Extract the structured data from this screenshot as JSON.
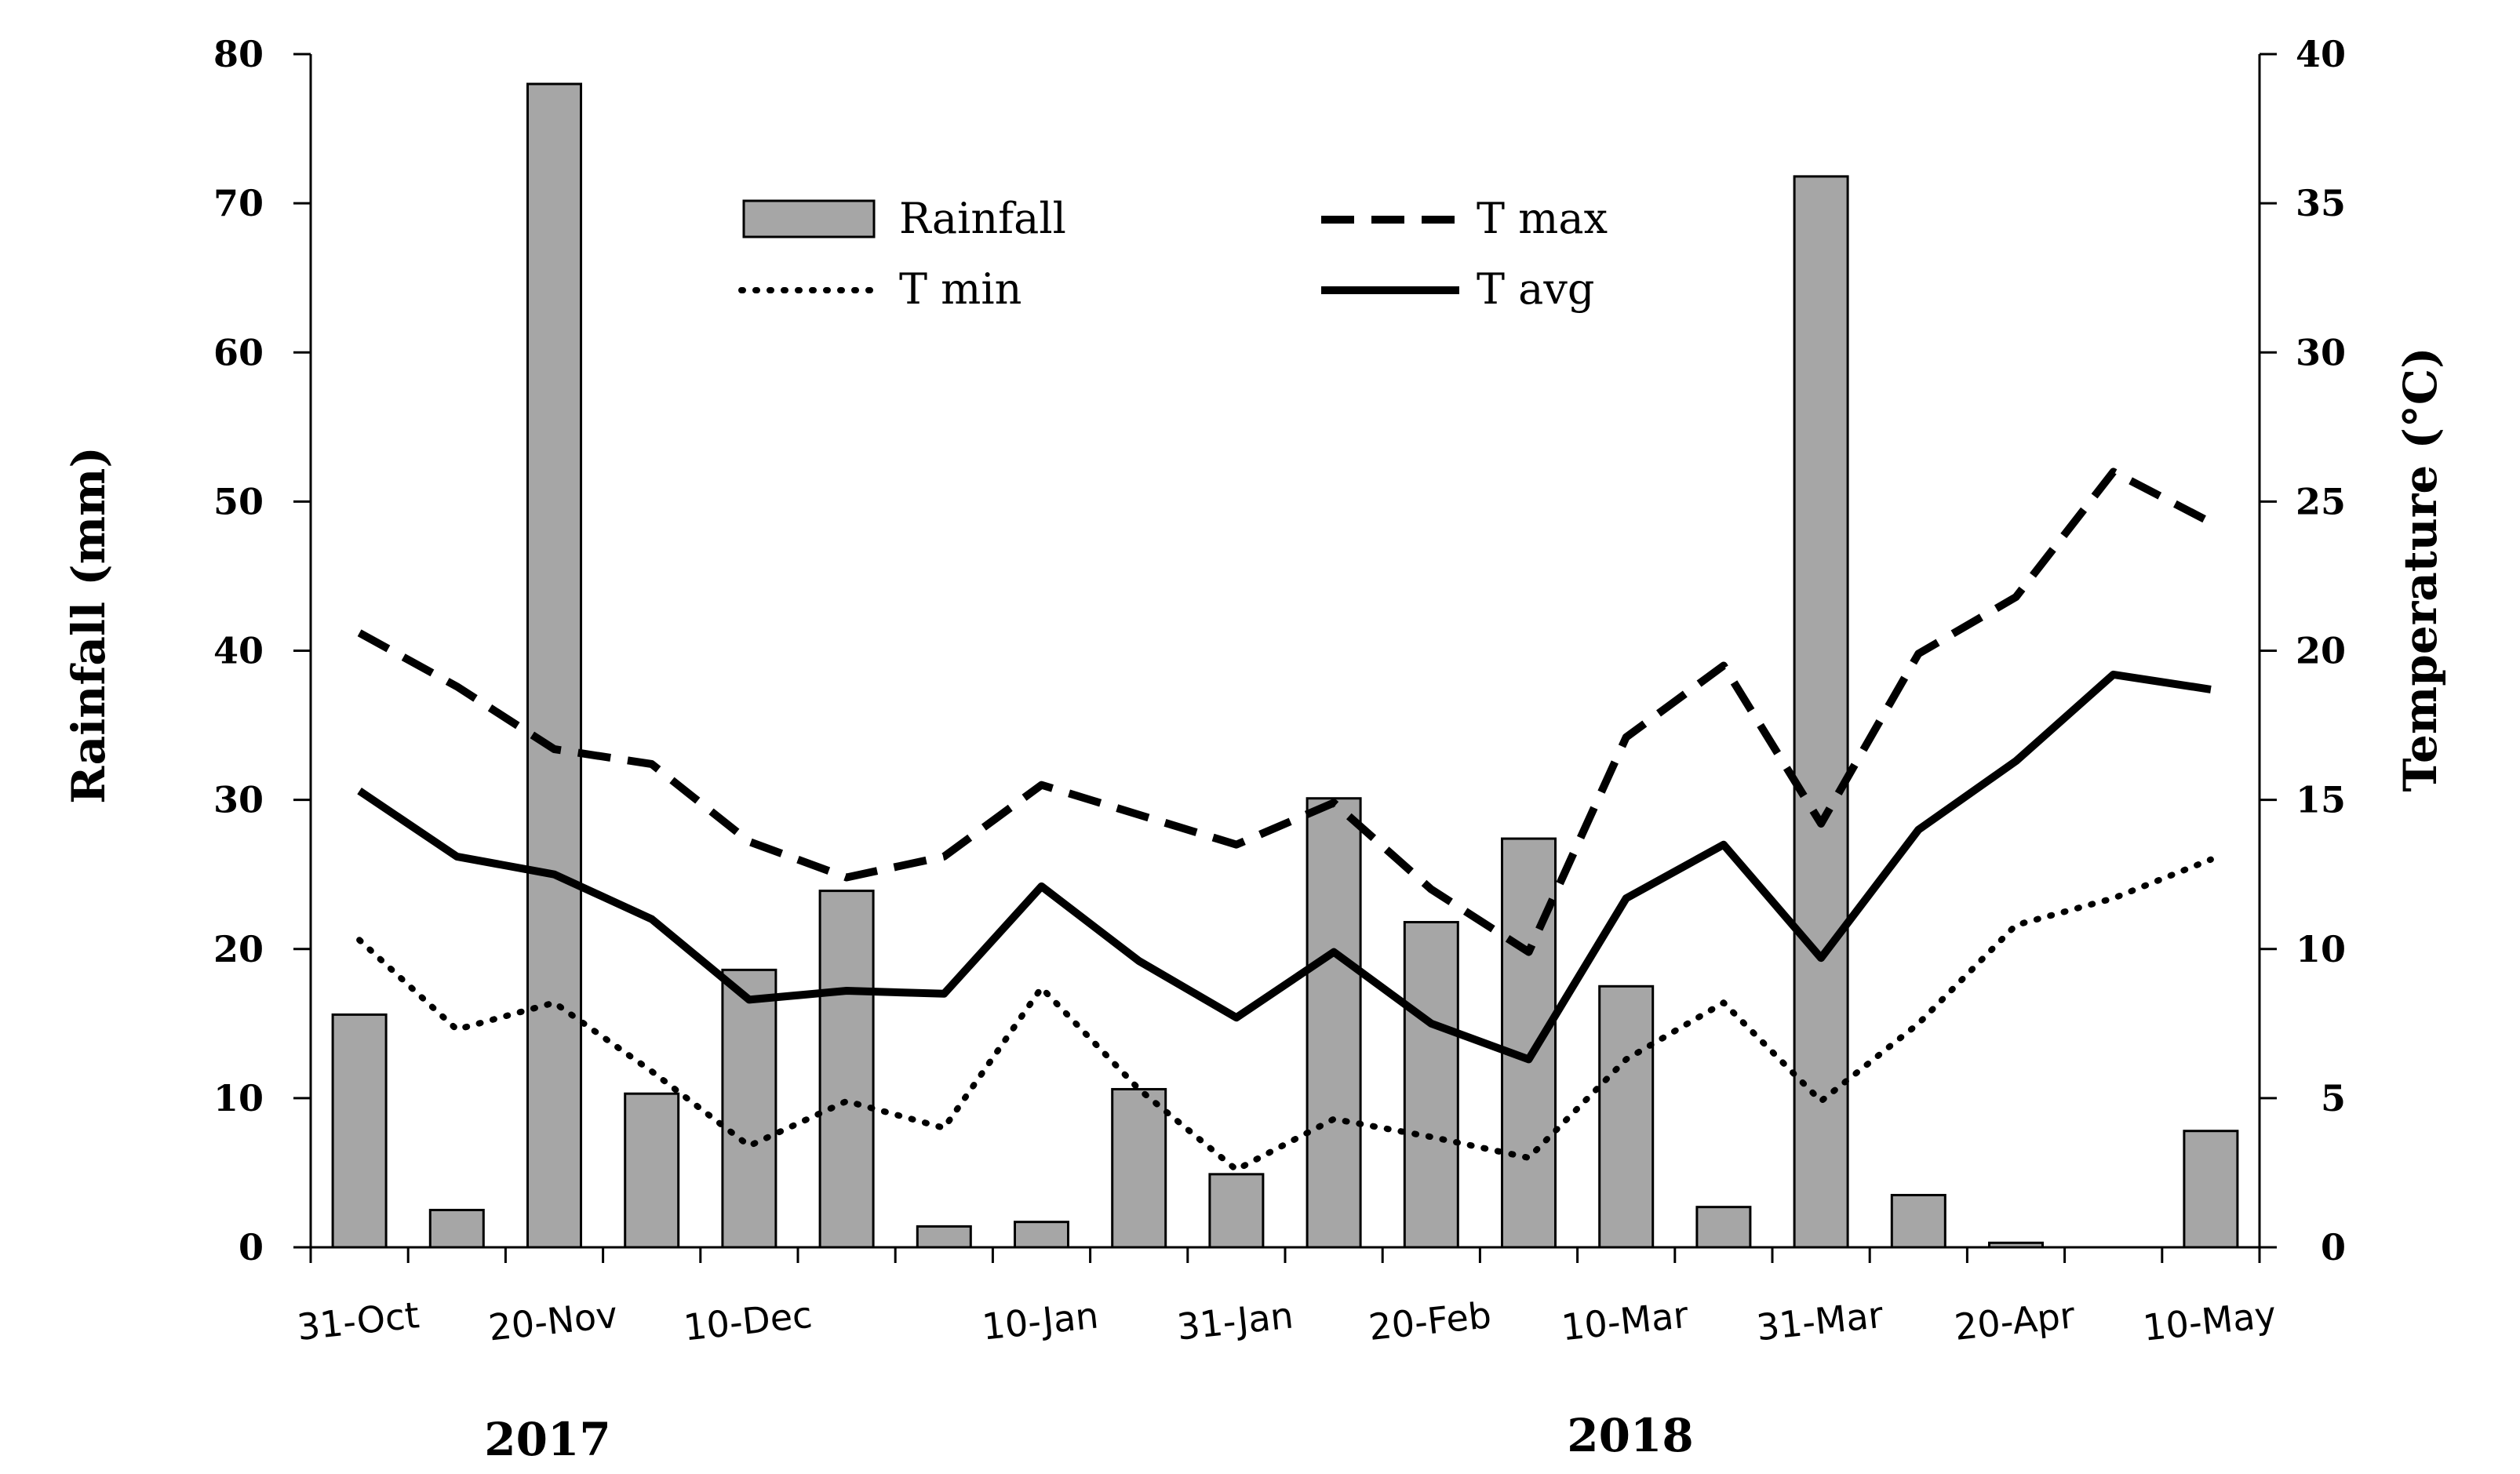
{
  "chart_data": {
    "type": "bar+line",
    "x_categories": [
      "31-Oct",
      "",
      "20-Nov",
      "",
      "10-Dec",
      "",
      "",
      "10-Jan",
      "",
      "31-Jan",
      "",
      "20-Feb",
      "",
      "10-Mar",
      "",
      "31-Mar",
      "",
      "20-Apr",
      "",
      "10-May"
    ],
    "x_tick_labels": [
      "31-Oct",
      "20-Nov",
      "10-Dec",
      "10-Jan",
      "31-Jan",
      "20-Feb",
      "10-Mar",
      "31-Mar",
      "20-Apr",
      "10-May"
    ],
    "year_labels": [
      "2017",
      "2018"
    ],
    "left_axis": {
      "label": "Rainfall  (mm)",
      "min": 0,
      "max": 80,
      "ticks": [
        0,
        10,
        20,
        30,
        40,
        50,
        60,
        70,
        80
      ]
    },
    "right_axis": {
      "label": "Temperature  (°C)",
      "min": 0,
      "max": 40,
      "ticks": [
        0,
        5,
        10,
        15,
        20,
        25,
        30,
        35,
        40
      ]
    },
    "rainfall": {
      "name": "Rainfall",
      "color": "#a6a6a6",
      "values": [
        15.6,
        2.5,
        78,
        10.3,
        18.6,
        23.9,
        1.4,
        1.7,
        10.6,
        4.9,
        30.1,
        21.8,
        27.4,
        17.5,
        2.7,
        71.8,
        3.5,
        0.3,
        0,
        7.8
      ]
    },
    "t_max": {
      "name": "T max",
      "values": [
        20.6,
        18.8,
        16.7,
        16.2,
        13.6,
        12.4,
        13.1,
        15.5,
        14.5,
        13.5,
        14.9,
        12.0,
        9.9,
        17.1,
        19.5,
        14.2,
        19.9,
        21.8,
        26.0,
        24.3
      ]
    },
    "t_min": {
      "name": "T min",
      "values": [
        10.3,
        7.3,
        8.2,
        5.9,
        3.4,
        4.9,
        4.0,
        8.7,
        5.3,
        2.6,
        4.3,
        3.7,
        3.0,
        6.3,
        8.2,
        4.9,
        7.5,
        10.8,
        11.7,
        13.0
      ]
    },
    "t_avg": {
      "name": "T avg",
      "values": [
        15.3,
        13.1,
        12.5,
        11.0,
        8.3,
        8.6,
        8.5,
        12.1,
        9.6,
        7.7,
        9.9,
        7.5,
        6.3,
        11.7,
        13.5,
        9.7,
        14.0,
        16.3,
        19.2,
        18.7
      ]
    }
  }
}
